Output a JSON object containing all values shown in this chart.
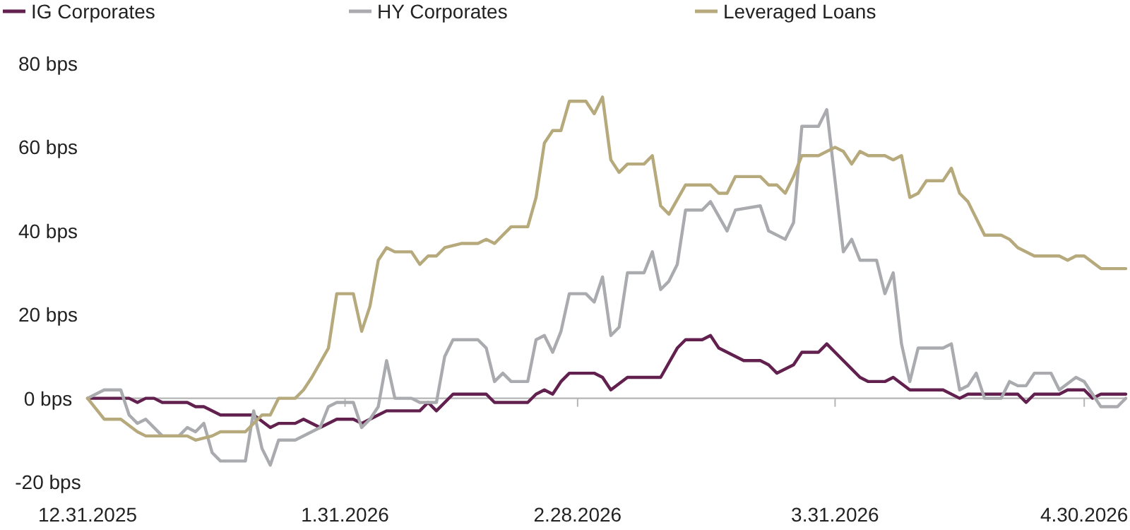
{
  "chart_data": {
    "type": "line",
    "legend": "top left",
    "line_style": "solid",
    "marker": "none",
    "xlim": [
      "2025-12-31",
      "2026-05-05"
    ],
    "ylim": [
      -20,
      80
    ],
    "xticks": [
      {
        "value": "2025-12-31",
        "label": "12.31.2025"
      },
      {
        "value": "2026-01-31",
        "label": "1.31.2026"
      },
      {
        "value": "2026-02-28",
        "label": "2.28.2026"
      },
      {
        "value": "2026-03-31",
        "label": "3.31.2026"
      },
      {
        "value": "2026-04-30",
        "label": "4.30.2026"
      }
    ],
    "yticks": [
      {
        "value": -20,
        "label": "-20 bps"
      },
      {
        "value": 0,
        "label": "0 bps"
      },
      {
        "value": 20,
        "label": "20 bps"
      },
      {
        "value": 40,
        "label": "40 bps"
      },
      {
        "value": 60,
        "label": "60 bps"
      },
      {
        "value": 80,
        "label": "80 bps"
      }
    ],
    "series": [
      {
        "name": "IG Corporates",
        "color": "#62204f",
        "x": [
          "2025-12-31",
          "2026-01-05",
          "2026-01-06",
          "2026-01-07",
          "2026-01-08",
          "2026-01-09",
          "2026-01-12",
          "2026-01-13",
          "2026-01-14",
          "2026-01-16",
          "2026-01-20",
          "2026-01-22",
          "2026-01-23",
          "2026-01-25",
          "2026-01-26",
          "2026-01-28",
          "2026-01-30",
          "2026-02-01",
          "2026-02-02",
          "2026-02-03",
          "2026-02-04",
          "2026-02-05",
          "2026-02-09",
          "2026-02-10",
          "2026-02-11",
          "2026-02-13",
          "2026-02-17",
          "2026-02-18",
          "2026-02-22",
          "2026-02-23",
          "2026-02-24",
          "2026-02-25",
          "2026-02-26",
          "2026-02-27",
          "2026-03-02",
          "2026-03-03",
          "2026-03-04",
          "2026-03-06",
          "2026-03-10",
          "2026-03-12",
          "2026-03-13",
          "2026-03-15",
          "2026-03-16",
          "2026-03-17",
          "2026-03-20",
          "2026-03-22",
          "2026-03-23",
          "2026-03-24",
          "2026-03-26",
          "2026-03-27",
          "2026-03-29",
          "2026-03-30",
          "2026-03-31",
          "2026-04-02",
          "2026-04-03",
          "2026-04-04",
          "2026-04-06",
          "2026-04-07",
          "2026-04-09",
          "2026-04-13",
          "2026-04-15",
          "2026-04-16",
          "2026-04-22",
          "2026-04-23",
          "2026-04-24",
          "2026-04-27",
          "2026-04-28",
          "2026-04-30",
          "2026-05-01",
          "2026-05-02",
          "2026-05-05"
        ],
        "values": [
          0,
          0,
          -1,
          0,
          0,
          -1,
          -1,
          -2,
          -2,
          -4,
          -4,
          -7,
          -6,
          -6,
          -5,
          -7,
          -5,
          -5,
          -6,
          -5,
          -4,
          -3,
          -3,
          -1,
          -3,
          1,
          1,
          -1,
          -1,
          1,
          2,
          1,
          4,
          6,
          6,
          5,
          2,
          5,
          5,
          12,
          14,
          14,
          15,
          12,
          9,
          9,
          8,
          6,
          8,
          11,
          11,
          13,
          11,
          7,
          5,
          4,
          4,
          5,
          2,
          2,
          0,
          1,
          1,
          -1,
          1,
          1,
          2,
          2,
          0,
          1,
          1
        ]
      },
      {
        "name": "HY Corporates",
        "color": "#aaabaf",
        "x": [
          "2025-12-31",
          "2026-01-02",
          "2026-01-04",
          "2026-01-05",
          "2026-01-06",
          "2026-01-07",
          "2026-01-09",
          "2026-01-11",
          "2026-01-12",
          "2026-01-13",
          "2026-01-14",
          "2026-01-15",
          "2026-01-16",
          "2026-01-19",
          "2026-01-20",
          "2026-01-21",
          "2026-01-22",
          "2026-01-23",
          "2026-01-25",
          "2026-01-28",
          "2026-01-29",
          "2026-01-30",
          "2026-02-01",
          "2026-02-02",
          "2026-02-03",
          "2026-02-04",
          "2026-02-05",
          "2026-02-06",
          "2026-02-08",
          "2026-02-09",
          "2026-02-11",
          "2026-02-12",
          "2026-02-13",
          "2026-02-16",
          "2026-02-17",
          "2026-02-18",
          "2026-02-19",
          "2026-02-20",
          "2026-02-22",
          "2026-02-23",
          "2026-02-24",
          "2026-02-25",
          "2026-02-26",
          "2026-02-27",
          "2026-03-01",
          "2026-03-02",
          "2026-03-03",
          "2026-03-04",
          "2026-03-05",
          "2026-03-06",
          "2026-03-08",
          "2026-03-09",
          "2026-03-10",
          "2026-03-11",
          "2026-03-12",
          "2026-03-13",
          "2026-03-15",
          "2026-03-16",
          "2026-03-18",
          "2026-03-19",
          "2026-03-22",
          "2026-03-23",
          "2026-03-25",
          "2026-03-26",
          "2026-03-27",
          "2026-03-29",
          "2026-03-30",
          "2026-04-01",
          "2026-04-02",
          "2026-04-03",
          "2026-04-05",
          "2026-04-06",
          "2026-04-07",
          "2026-04-08",
          "2026-04-09",
          "2026-04-10",
          "2026-04-13",
          "2026-04-14",
          "2026-04-15",
          "2026-04-16",
          "2026-04-17",
          "2026-04-18",
          "2026-04-20",
          "2026-04-21",
          "2026-04-22",
          "2026-04-23",
          "2026-04-24",
          "2026-04-26",
          "2026-04-27",
          "2026-04-29",
          "2026-04-30",
          "2026-05-01",
          "2026-05-02",
          "2026-05-04",
          "2026-05-05"
        ],
        "values": [
          0,
          2,
          2,
          -4,
          -6,
          -5,
          -9,
          -9,
          -7,
          -8,
          -6,
          -13,
          -15,
          -15,
          -3,
          -12,
          -16,
          -10,
          -10,
          -7,
          -2,
          -1,
          -1,
          -7,
          -5,
          -2,
          9,
          0,
          0,
          -1,
          -1,
          10,
          14,
          14,
          12,
          4,
          6,
          4,
          4,
          14,
          15,
          11,
          16,
          25,
          25,
          23,
          29,
          15,
          17,
          30,
          30,
          35,
          26,
          28,
          32,
          45,
          45,
          47,
          40,
          45,
          46,
          40,
          38,
          42,
          65,
          65,
          69,
          35,
          38,
          33,
          33,
          25,
          30,
          13,
          4,
          12,
          12,
          13,
          2,
          3,
          6,
          0,
          0,
          4,
          3,
          3,
          6,
          6,
          2,
          5,
          4,
          1,
          -2,
          -2,
          0
        ]
      },
      {
        "name": "Leveraged Loans",
        "color": "#b6a97c",
        "x": [
          "2025-12-31",
          "2026-01-02",
          "2026-01-04",
          "2026-01-06",
          "2026-01-07",
          "2026-01-12",
          "2026-01-13",
          "2026-01-15",
          "2026-01-16",
          "2026-01-19",
          "2026-01-21",
          "2026-01-22",
          "2026-01-23",
          "2026-01-25",
          "2026-01-26",
          "2026-01-27",
          "2026-01-29",
          "2026-01-30",
          "2026-02-01",
          "2026-02-02",
          "2026-02-03",
          "2026-02-04",
          "2026-02-05",
          "2026-02-06",
          "2026-02-08",
          "2026-02-09",
          "2026-02-10",
          "2026-02-11",
          "2026-02-12",
          "2026-02-14",
          "2026-02-16",
          "2026-02-17",
          "2026-02-18",
          "2026-02-20",
          "2026-02-22",
          "2026-02-23",
          "2026-02-24",
          "2026-02-25",
          "2026-02-26",
          "2026-02-27",
          "2026-03-01",
          "2026-03-02",
          "2026-03-03",
          "2026-03-04",
          "2026-03-05",
          "2026-03-06",
          "2026-03-08",
          "2026-03-09",
          "2026-03-10",
          "2026-03-11",
          "2026-03-13",
          "2026-03-16",
          "2026-03-17",
          "2026-03-18",
          "2026-03-19",
          "2026-03-22",
          "2026-03-23",
          "2026-03-24",
          "2026-03-25",
          "2026-03-26",
          "2026-03-27",
          "2026-03-29",
          "2026-03-31",
          "2026-04-01",
          "2026-04-02",
          "2026-04-03",
          "2026-04-04",
          "2026-04-06",
          "2026-04-07",
          "2026-04-08",
          "2026-04-09",
          "2026-04-10",
          "2026-04-11",
          "2026-04-13",
          "2026-04-14",
          "2026-04-15",
          "2026-04-16",
          "2026-04-18",
          "2026-04-20",
          "2026-04-21",
          "2026-04-22",
          "2026-04-24",
          "2026-04-27",
          "2026-04-28",
          "2026-04-29",
          "2026-04-30",
          "2026-05-02",
          "2026-05-05"
        ],
        "values": [
          0,
          -5,
          -5,
          -8,
          -9,
          -9,
          -10,
          -9,
          -8,
          -8,
          -4,
          -4,
          0,
          0,
          2,
          5,
          12,
          25,
          25,
          16,
          22,
          33,
          36,
          35,
          35,
          32,
          34,
          34,
          36,
          37,
          37,
          38,
          37,
          41,
          41,
          48,
          61,
          64,
          64,
          71,
          71,
          68,
          72,
          57,
          54,
          56,
          56,
          58,
          46,
          44,
          51,
          51,
          49,
          49,
          53,
          53,
          51,
          51,
          49,
          53,
          58,
          58,
          60,
          59,
          56,
          59,
          58,
          58,
          57,
          58,
          48,
          49,
          52,
          52,
          55,
          49,
          47,
          39,
          39,
          38,
          36,
          34,
          34,
          33,
          34,
          34,
          31,
          31
        ]
      }
    ]
  }
}
